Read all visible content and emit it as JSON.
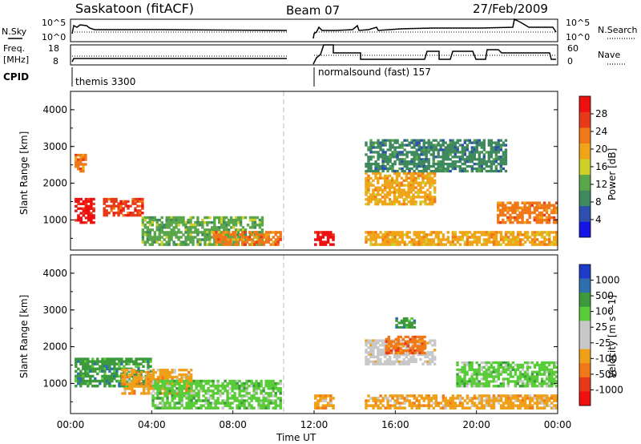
{
  "header": {
    "station": "Saskatoon (fitACF)",
    "beam": "Beam 07",
    "date": "27/Feb/2009"
  },
  "noise_panel": {
    "left_label": "N.Sky",
    "right_label": "N.Search",
    "tick_top": "10^5",
    "tick_bottom": "10^0",
    "right_tick_top": "10^5",
    "right_tick_bottom": "10^0"
  },
  "freq_panel": {
    "left_label_1": "Freq.",
    "left_label_2": "[MHz]",
    "left_tick_top": "18",
    "left_tick_bottom": "8",
    "right_label": "Nave",
    "right_tick_top": "60",
    "right_tick_bottom": "0"
  },
  "cpid_panel": {
    "label": "CPID",
    "segments": [
      {
        "name": "themis 3300",
        "start_hour": 0,
        "end_hour": 12
      },
      {
        "name": "normalsound (fast) 157",
        "start_hour": 12,
        "end_hour": 24
      }
    ]
  },
  "x_axis": {
    "title": "Time UT",
    "ticks": [
      "00:00",
      "04:00",
      "08:00",
      "12:00",
      "16:00",
      "20:00",
      "00:00"
    ]
  },
  "colors": {
    "power_scale": [
      "#1414e6",
      "#2f4fb0",
      "#3e8a5e",
      "#5aa64a",
      "#cfcf2a",
      "#f0a418",
      "#f07818",
      "#e83a18",
      "#ee1010"
    ],
    "velocity_scale": [
      "#1e3cc8",
      "#2f6fb0",
      "#3c9a3c",
      "#5acc3a",
      "#c8c8c8",
      "#c8c8c8",
      "#f0a018",
      "#f07818",
      "#e83a1a",
      "#f01010"
    ]
  },
  "chart_data": [
    {
      "type": "heatmap",
      "name": "power",
      "ylabel": "Slant Range [km]",
      "yticks": [
        "1000",
        "2000",
        "3000",
        "4000"
      ],
      "ylim": [
        180,
        4500
      ],
      "xlim": [
        0,
        24
      ],
      "colorbar_label": "Power [dB]",
      "colorbar_ticks": [
        "4",
        "8",
        "12",
        "16",
        "20",
        "24",
        "28"
      ],
      "data_gap_hours": [
        10.5,
        12
      ],
      "regions": [
        {
          "t0": 0.2,
          "t1": 1.2,
          "r0": 900,
          "r1": 1600,
          "level": 28
        },
        {
          "t0": 1.6,
          "t1": 3.6,
          "r0": 1100,
          "r1": 1600,
          "level": 26
        },
        {
          "t0": 0.2,
          "t1": 0.8,
          "r0": 2300,
          "r1": 2800,
          "level": 24
        },
        {
          "t0": 3.5,
          "t1": 9.5,
          "r0": 300,
          "r1": 1100,
          "level": 14
        },
        {
          "t0": 7.0,
          "t1": 10.4,
          "r0": 300,
          "r1": 700,
          "level": 24
        },
        {
          "t0": 12.0,
          "t1": 13.0,
          "r0": 300,
          "r1": 700,
          "level": 28
        },
        {
          "t0": 14.5,
          "t1": 24,
          "r0": 300,
          "r1": 700,
          "level": 22
        },
        {
          "t0": 14.5,
          "t1": 18.0,
          "r0": 1400,
          "r1": 2300,
          "level": 20
        },
        {
          "t0": 21.0,
          "t1": 24,
          "r0": 900,
          "r1": 1500,
          "level": 24
        },
        {
          "t0": 14.5,
          "t1": 21.5,
          "r0": 2300,
          "r1": 3200,
          "level": 8
        }
      ]
    },
    {
      "type": "heatmap",
      "name": "velocity",
      "ylabel": "Slant Range [km]",
      "yticks": [
        "1000",
        "2000",
        "3000",
        "4000"
      ],
      "ylim": [
        180,
        4500
      ],
      "xlim": [
        0,
        24
      ],
      "colorbar_label": "Velocity [m s^-1]",
      "colorbar_ticks": [
        "1000",
        "500",
        "100",
        "25",
        "-25",
        "-100",
        "-500",
        "-1000"
      ],
      "data_gap_hours": [
        10.5,
        12
      ],
      "regions": [
        {
          "t0": 0.2,
          "t1": 4.0,
          "r0": 900,
          "r1": 1700,
          "level": 100
        },
        {
          "t0": 2.5,
          "t1": 6.0,
          "r0": 700,
          "r1": 1400,
          "level": -100
        },
        {
          "t0": 4.0,
          "t1": 10.4,
          "r0": 300,
          "r1": 1100,
          "level": 25
        },
        {
          "t0": 12.0,
          "t1": 13.0,
          "r0": 300,
          "r1": 700,
          "level": -100
        },
        {
          "t0": 14.5,
          "t1": 24,
          "r0": 300,
          "r1": 700,
          "level": -100
        },
        {
          "t0": 14.5,
          "t1": 18.0,
          "r0": 1500,
          "r1": 2200,
          "level": -25
        },
        {
          "t0": 15.5,
          "t1": 17.5,
          "r0": 1800,
          "r1": 2300,
          "level": -500
        },
        {
          "t0": 16.0,
          "t1": 17.0,
          "r0": 2500,
          "r1": 2800,
          "level": 100
        },
        {
          "t0": 19.0,
          "t1": 24,
          "r0": 900,
          "r1": 1600,
          "level": 25
        }
      ]
    }
  ]
}
